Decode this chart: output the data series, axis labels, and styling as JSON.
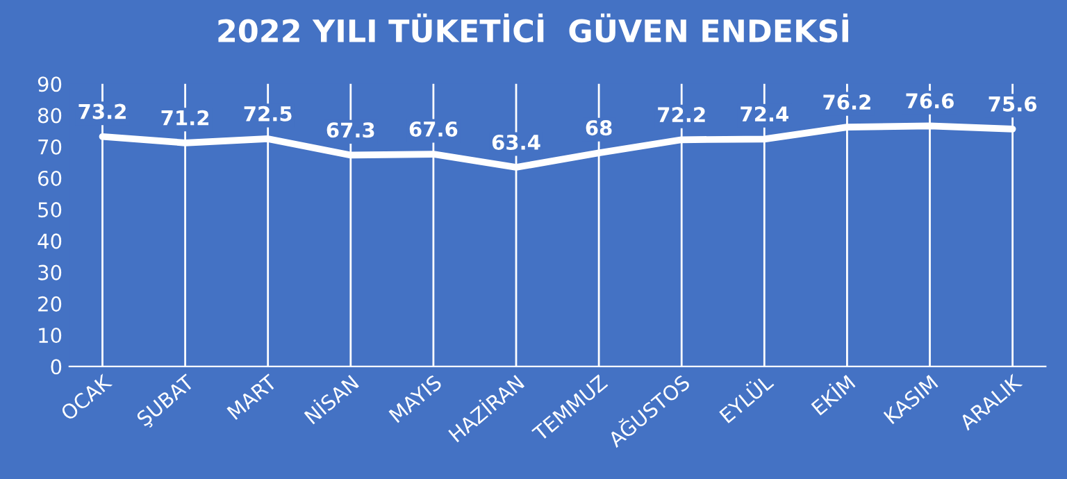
{
  "chart_data": {
    "type": "line",
    "title": "2022 YILI TÜKETİCİ  GÜVEN ENDEKSİ",
    "categories": [
      "OCAK",
      "ŞUBAT",
      "MART",
      "NİSAN",
      "MAYIS",
      "HAZİRAN",
      "TEMMUZ",
      "AĞUSTOS",
      "EYLÜL",
      "EKİM",
      "KASIM",
      "ARALIK"
    ],
    "series": [
      {
        "color": "#ffffff",
        "values": [
          73.2,
          71.2,
          72.5,
          67.3,
          67.6,
          63.4,
          68,
          72.2,
          72.4,
          76.2,
          76.6,
          75.6
        ]
      }
    ],
    "ylim": [
      0,
      90
    ],
    "yticks": [
      0,
      10,
      20,
      30,
      40,
      50,
      60,
      70,
      80,
      90
    ],
    "grid": "x",
    "data_labels": true,
    "marker": "none",
    "line_style": "solid",
    "legend": false
  }
}
